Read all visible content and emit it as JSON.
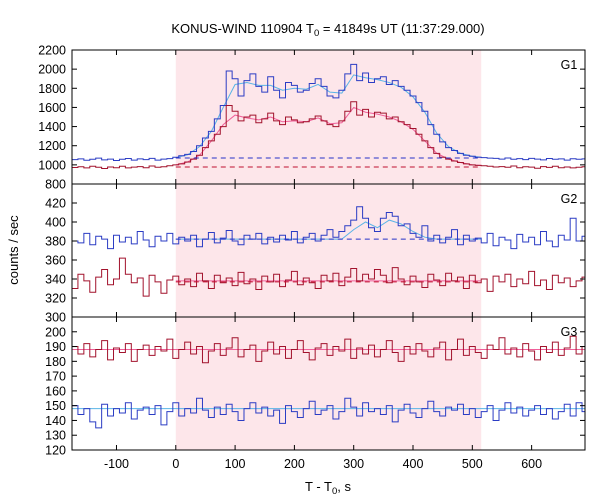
{
  "chart_data": {
    "type": "line",
    "title": {
      "text": "KONUS-WIND 110904 T",
      "sub": "0",
      "tail": " = 41849s UT (11:37:29.000)"
    },
    "xlabel": {
      "text": "T - T",
      "sub": "0",
      "tail": ", s"
    },
    "ylabel": "counts / sec",
    "xlim": [
      -175,
      690
    ],
    "xticks": [
      -100,
      0,
      100,
      200,
      300,
      400,
      500,
      600
    ],
    "shaded_interval": [
      0,
      515
    ],
    "shade_color": "#fde6ea",
    "x": [
      -175,
      -165,
      -155,
      -145,
      -135,
      -125,
      -115,
      -105,
      -95,
      -85,
      -75,
      -65,
      -55,
      -45,
      -35,
      -25,
      -15,
      -5,
      5,
      15,
      25,
      35,
      45,
      55,
      65,
      75,
      85,
      95,
      105,
      115,
      125,
      135,
      145,
      155,
      165,
      175,
      185,
      195,
      205,
      215,
      225,
      235,
      245,
      255,
      265,
      275,
      285,
      295,
      305,
      315,
      325,
      335,
      345,
      355,
      365,
      375,
      385,
      395,
      405,
      415,
      425,
      435,
      445,
      455,
      465,
      475,
      485,
      495,
      505,
      515,
      525,
      535,
      545,
      555,
      565,
      575,
      585,
      595,
      605,
      615,
      625,
      635,
      645,
      655,
      665,
      675,
      685
    ],
    "panels": [
      {
        "label": "G1",
        "ylim": [
          800,
          2200
        ],
        "yticks": [
          800,
          1000,
          1200,
          1400,
          1600,
          1800,
          2000,
          2200
        ],
        "series": [
          {
            "color": "#2b3cc4",
            "values": [
              1055,
              1062,
              1048,
              1058,
              1070,
              1052,
              1060,
              1045,
              1058,
              1066,
              1050,
              1062,
              1055,
              1068,
              1050,
              1060,
              1065,
              1080,
              1095,
              1110,
              1140,
              1200,
              1280,
              1350,
              1480,
              1620,
              1980,
              1900,
              1720,
              1880,
              1950,
              1820,
              1760,
              1920,
              1780,
              1700,
              1860,
              1830,
              1760,
              1780,
              1850,
              1900,
              1820,
              1720,
              1700,
              1780,
              1950,
              2050,
              1880,
              1960,
              1860,
              1900,
              1920,
              1840,
              1880,
              1820,
              1780,
              1720,
              1650,
              1560,
              1420,
              1320,
              1240,
              1180,
              1150,
              1120,
              1100,
              1090,
              1080,
              1075,
              1070,
              1068,
              1060,
              1072,
              1058,
              1065,
              1055,
              1068,
              1060,
              1052,
              1066,
              1058,
              1062,
              1050,
              1064,
              1058,
              1062
            ]
          },
          {
            "color": "#a2122c",
            "values": [
              972,
              980,
              968,
              985,
              975,
              962,
              978,
              970,
              985,
              968,
              976,
              982,
              970,
              988,
              975,
              980,
              990,
              1000,
              1010,
              1030,
              1060,
              1100,
              1180,
              1250,
              1320,
              1400,
              1620,
              1560,
              1460,
              1500,
              1520,
              1440,
              1480,
              1540,
              1460,
              1420,
              1500,
              1470,
              1440,
              1450,
              1480,
              1510,
              1460,
              1420,
              1400,
              1460,
              1560,
              1660,
              1520,
              1580,
              1500,
              1550,
              1540,
              1480,
              1500,
              1450,
              1420,
              1380,
              1320,
              1250,
              1180,
              1120,
              1080,
              1060,
              1040,
              1025,
              1010,
              1000,
              995,
              990,
              985,
              978,
              982,
              975,
              988,
              970,
              980,
              976,
              965,
              982,
              974,
              986,
              970,
              978,
              968,
              975,
              980
            ]
          }
        ],
        "models": [
          {
            "color": "#5ab4e6",
            "x": [
              0,
              20,
              40,
              60,
              80,
              100,
              120,
              140,
              160,
              180,
              200,
              220,
              240,
              260,
              280,
              300,
              320,
              340,
              360,
              380,
              400,
              420,
              440,
              460,
              480,
              500,
              515
            ],
            "y": [
              1075,
              1105,
              1190,
              1350,
              1600,
              1840,
              1860,
              1830,
              1830,
              1780,
              1800,
              1790,
              1840,
              1760,
              1750,
              1940,
              1910,
              1890,
              1860,
              1810,
              1710,
              1550,
              1330,
              1190,
              1120,
              1090,
              1080
            ]
          },
          {
            "color": "#f0609a",
            "x": [
              0,
              20,
              40,
              60,
              80,
              100,
              120,
              140,
              160,
              180,
              200,
              220,
              240,
              260,
              280,
              300,
              320,
              340,
              360,
              380,
              400,
              420,
              440,
              460,
              480,
              500,
              515
            ],
            "y": [
              1000,
              1030,
              1100,
              1250,
              1420,
              1520,
              1490,
              1470,
              1500,
              1450,
              1460,
              1450,
              1490,
              1430,
              1440,
              1600,
              1550,
              1530,
              1500,
              1450,
              1370,
              1250,
              1120,
              1060,
              1025,
              1000,
              995
            ]
          }
        ],
        "background_levels": [
          {
            "color": "#2633c8",
            "y": 1072,
            "x": [
              0,
              515
            ]
          },
          {
            "color": "#c01030",
            "y": 978,
            "x": [
              0,
              515
            ]
          }
        ]
      },
      {
        "label": "G2",
        "ylim": [
          300,
          440
        ],
        "yticks": [
          300,
          320,
          340,
          360,
          380,
          400,
          420
        ],
        "series": [
          {
            "color": "#2b3cc4",
            "values": [
              380,
              378,
              388,
              376,
              385,
              382,
              372,
              386,
              379,
              384,
              377,
              390,
              381,
              374,
              385,
              380,
              388,
              377,
              384,
              380,
              386,
              374,
              382,
              389,
              378,
              383,
              391,
              380,
              376,
              386,
              382,
              388,
              377,
              384,
              379,
              386,
              381,
              390,
              378,
              384,
              388,
              380,
              386,
              392,
              384,
              390,
              396,
              402,
              416,
              404,
              394,
              390,
              404,
              410,
              406,
              396,
              398,
              388,
              384,
              396,
              380,
              386,
              378,
              384,
              392,
              376,
              386,
              380,
              383,
              378,
              388,
              375,
              384,
              381,
              372,
              387,
              379,
              384,
              376,
              390,
              380,
              374,
              386,
              381,
              404,
              380,
              385
            ]
          },
          {
            "color": "#a2122c",
            "values": [
              330,
              345,
              338,
              326,
              342,
              350,
              334,
              340,
              362,
              345,
              336,
              341,
              322,
              344,
              337,
              325,
              339,
              343,
              334,
              340,
              332,
              346,
              338,
              330,
              344,
              336,
              341,
              333,
              347,
              335,
              340,
              329,
              343,
              337,
              345,
              332,
              339,
              348,
              334,
              341,
              336,
              330,
              344,
              338,
              346,
              333,
              342,
              351,
              338,
              345,
              340,
              350,
              344,
              336,
              352,
              340,
              334,
              343,
              337,
              331,
              345,
              339,
              333,
              346,
              338,
              342,
              330,
              344,
              336,
              340,
              327,
              343,
              337,
              345,
              332,
              340,
              335,
              348,
              333,
              339,
              329,
              344,
              336,
              341,
              332,
              338,
              342
            ]
          }
        ],
        "models": [
          {
            "color": "#5ab4e6",
            "x": [
              0,
              280,
              300,
              320,
              340,
              360,
              380,
              400,
              420,
              440,
              515
            ],
            "y": [
              382,
              382,
              392,
              400,
              394,
              402,
              398,
              390,
              384,
              382,
              382
            ]
          },
          {
            "color": "#f0609a",
            "x": [
              0,
              515
            ],
            "y": [
              338,
              338
            ]
          }
        ],
        "background_levels": [
          {
            "color": "#2633c8",
            "y": 382,
            "x": [
              0,
              515
            ]
          },
          {
            "color": "#c01030",
            "y": 337,
            "x": [
              0,
              515
            ]
          }
        ]
      },
      {
        "label": "G3",
        "ylim": [
          120,
          210
        ],
        "yticks": [
          120,
          130,
          140,
          150,
          160,
          170,
          180,
          190,
          200
        ],
        "series": [
          {
            "color": "#a2122c",
            "values": [
              190,
              185,
              192,
              183,
              188,
              194,
              181,
              189,
              186,
              192,
              180,
              188,
              191,
              184,
              190,
              187,
              195,
              182,
              188,
              193,
              185,
              190,
              179,
              187,
              192,
              184,
              189,
              196,
              183,
              188,
              191,
              180,
              187,
              193,
              185,
              190,
              182,
              188,
              194,
              186,
              181,
              189,
              192,
              184,
              190,
              187,
              195,
              182,
              189,
              185,
              191,
              183,
              188,
              194,
              186,
              180,
              190,
              185,
              192,
              187,
              183,
              189,
              193,
              181,
              188,
              195,
              184,
              190,
              186,
              182,
              191,
              188,
              196,
              185,
              189,
              183,
              192,
              187,
              181,
              190,
              186,
              193,
              184,
              189,
              197,
              185,
              190
            ]
          },
          {
            "color": "#2b3cc4",
            "values": [
              150,
              144,
              148,
              139,
              135,
              151,
              143,
              148,
              145,
              152,
              141,
              147,
              149,
              144,
              150,
              137,
              146,
              152,
              143,
              148,
              145,
              155,
              147,
              142,
              149,
              144,
              151,
              146,
              140,
              148,
              152,
              145,
              149,
              143,
              147,
              138,
              150,
              146,
              142,
              148,
              153,
              144,
              147,
              150,
              141,
              146,
              155,
              149,
              143,
              152,
              146,
              148,
              144,
              150,
              139,
              147,
              151,
              145,
              142,
              148,
              153,
              146,
              143,
              149,
              147,
              151,
              144,
              148,
              142,
              146,
              150,
              140,
              147,
              152,
              145,
              149,
              143,
              147,
              150,
              144,
              148,
              141,
              146,
              151,
              143,
              152,
              146
            ]
          }
        ],
        "models": [
          {
            "color": "#f0609a",
            "x": [
              -175,
              690
            ],
            "y": [
              188,
              188
            ]
          },
          {
            "color": "#5ab4e6",
            "x": [
              -175,
              690
            ],
            "y": [
              148,
              148
            ]
          }
        ],
        "background_levels": []
      }
    ]
  }
}
